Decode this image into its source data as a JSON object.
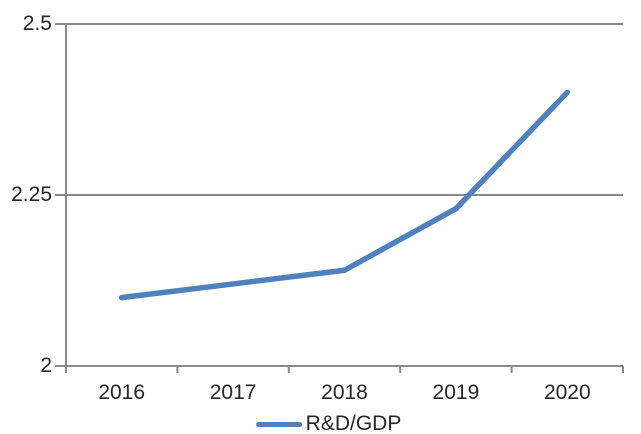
{
  "chart_data": {
    "type": "line",
    "title": "",
    "categories": [
      "2016",
      "2017",
      "2018",
      "2019",
      "2020"
    ],
    "series": [
      {
        "name": "R&D/GDP",
        "values": [
          2.1,
          2.12,
          2.14,
          2.23,
          2.4
        ]
      }
    ],
    "xlabel": "",
    "ylabel": "",
    "ylim": [
      2,
      2.5
    ],
    "y_ticks": [
      {
        "value": 2,
        "label": "2"
      },
      {
        "value": 2.25,
        "label": "2.25"
      },
      {
        "value": 2.5,
        "label": "2.5"
      }
    ],
    "grid": "horizontal",
    "legend_position": "bottom-center",
    "colors": {
      "series": "#4F81BD",
      "axis": "#8A8A8A",
      "gridline": "#8A8A8A",
      "tick_label": "#262626",
      "background": "#FFFFFF"
    }
  }
}
